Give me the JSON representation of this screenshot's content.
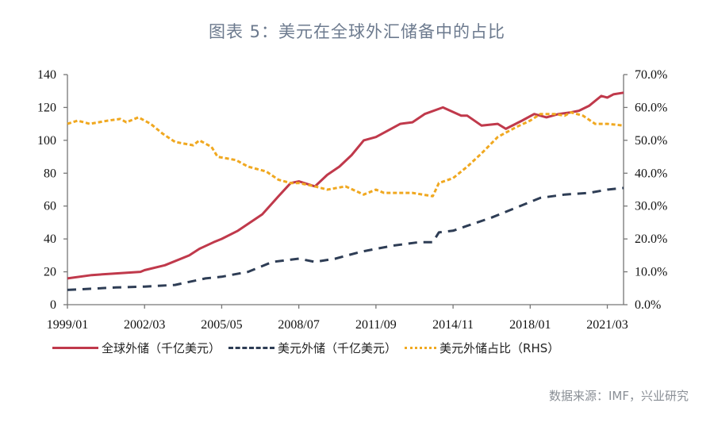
{
  "title": "图表 5：美元在全球外汇储备中的占比",
  "source": "数据来源：IMF，兴业研究",
  "chart_data": {
    "type": "line",
    "title": "图表 5：美元在全球外汇储备中的占比",
    "x_ticks": [
      "1999/01",
      "2002/03",
      "2005/05",
      "2008/07",
      "2011/09",
      "2014/11",
      "2018/01",
      "2021/03"
    ],
    "xlim": [
      "1999/01",
      "2021/11"
    ],
    "y_left": {
      "lim": [
        0,
        140
      ],
      "ticks": [
        "0",
        "20",
        "40",
        "60",
        "80",
        "100",
        "120",
        "140"
      ]
    },
    "y_right": {
      "lim": [
        0,
        70
      ],
      "ticks": [
        "0.0%",
        "10.0%",
        "20.0%",
        "30.0%",
        "40.0%",
        "50.0%",
        "60.0%",
        "70.0%"
      ]
    },
    "grid": false,
    "legend_position": "bottom",
    "series": [
      {
        "name": "全球外储（千亿美元）",
        "axis": "left",
        "color": "#c0394b",
        "style": "solid",
        "points": [
          [
            "1999/01",
            16
          ],
          [
            "2000/01",
            18
          ],
          [
            "2001/01",
            19
          ],
          [
            "2002/01",
            20
          ],
          [
            "2002/03",
            21
          ],
          [
            "2003/01",
            24
          ],
          [
            "2004/01",
            30
          ],
          [
            "2004/06",
            34
          ],
          [
            "2005/01",
            38
          ],
          [
            "2005/05",
            40
          ],
          [
            "2006/01",
            45
          ],
          [
            "2007/01",
            55
          ],
          [
            "2007/09",
            66
          ],
          [
            "2008/03",
            74
          ],
          [
            "2008/07",
            75
          ],
          [
            "2009/03",
            72
          ],
          [
            "2009/09",
            79
          ],
          [
            "2010/03",
            84
          ],
          [
            "2010/09",
            91
          ],
          [
            "2011/03",
            100
          ],
          [
            "2011/09",
            102
          ],
          [
            "2012/03",
            106
          ],
          [
            "2012/09",
            110
          ],
          [
            "2013/03",
            111
          ],
          [
            "2013/09",
            116
          ],
          [
            "2014/06",
            120
          ],
          [
            "2015/03",
            115
          ],
          [
            "2015/06",
            115
          ],
          [
            "2016/01",
            109
          ],
          [
            "2016/09",
            110
          ],
          [
            "2017/01",
            107
          ],
          [
            "2017/09",
            112
          ],
          [
            "2018/03",
            116
          ],
          [
            "2018/09",
            114
          ],
          [
            "2019/03",
            116
          ],
          [
            "2019/09",
            117
          ],
          [
            "2020/01",
            118
          ],
          [
            "2020/06",
            121
          ],
          [
            "2020/12",
            127
          ],
          [
            "2021/03",
            126
          ],
          [
            "2021/06",
            128
          ],
          [
            "2021/11",
            129
          ]
        ]
      },
      {
        "name": "美元外储（千亿美元）",
        "axis": "left",
        "color": "#2e3d55",
        "style": "dashed",
        "points": [
          [
            "1999/01",
            9
          ],
          [
            "2001/01",
            10.5
          ],
          [
            "2002/03",
            11
          ],
          [
            "2003/06",
            12
          ],
          [
            "2004/09",
            16
          ],
          [
            "2005/05",
            17
          ],
          [
            "2006/06",
            20
          ],
          [
            "2007/06",
            26
          ],
          [
            "2008/07",
            28
          ],
          [
            "2009/03",
            26
          ],
          [
            "2010/01",
            28
          ],
          [
            "2011/01",
            32
          ],
          [
            "2011/09",
            34
          ],
          [
            "2012/06",
            36
          ],
          [
            "2013/06",
            38
          ],
          [
            "2014/01",
            38
          ],
          [
            "2014/04",
            44
          ],
          [
            "2014/11",
            45
          ],
          [
            "2015/06",
            48
          ],
          [
            "2016/06",
            53
          ],
          [
            "2017/06",
            59
          ],
          [
            "2018/06",
            65
          ],
          [
            "2019/06",
            67
          ],
          [
            "2020/06",
            68
          ],
          [
            "2021/03",
            70
          ],
          [
            "2021/11",
            71
          ]
        ]
      },
      {
        "name": "美元外储占比（RHS）",
        "axis": "right",
        "color": "#f0a820",
        "style": "dotted",
        "points": [
          [
            "1999/01",
            55
          ],
          [
            "1999/06",
            56
          ],
          [
            "1999/12",
            55
          ],
          [
            "2000/09",
            56
          ],
          [
            "2001/03",
            56.5
          ],
          [
            "2001/06",
            55.5
          ],
          [
            "2001/12",
            57
          ],
          [
            "2002/06",
            55
          ],
          [
            "2002/12",
            52
          ],
          [
            "2003/06",
            49.5
          ],
          [
            "2004/03",
            48.5
          ],
          [
            "2004/06",
            50
          ],
          [
            "2004/12",
            48
          ],
          [
            "2005/03",
            45
          ],
          [
            "2005/12",
            44
          ],
          [
            "2006/06",
            42
          ],
          [
            "2007/03",
            40.5
          ],
          [
            "2007/09",
            38
          ],
          [
            "2008/03",
            37
          ],
          [
            "2008/07",
            37
          ],
          [
            "2009/03",
            36
          ],
          [
            "2009/09",
            35
          ],
          [
            "2010/06",
            36
          ],
          [
            "2011/03",
            33.5
          ],
          [
            "2011/09",
            35
          ],
          [
            "2012/01",
            34
          ],
          [
            "2012/09",
            34
          ],
          [
            "2013/03",
            34
          ],
          [
            "2014/01",
            33
          ],
          [
            "2014/04",
            37
          ],
          [
            "2014/11",
            38.5
          ],
          [
            "2015/06",
            42
          ],
          [
            "2016/01",
            46
          ],
          [
            "2016/09",
            51
          ],
          [
            "2017/06",
            54
          ],
          [
            "2018/01",
            56
          ],
          [
            "2018/06",
            58
          ],
          [
            "2019/01",
            58
          ],
          [
            "2019/06",
            57.5
          ],
          [
            "2019/09",
            58.5
          ],
          [
            "2020/03",
            57.5
          ],
          [
            "2020/09",
            55
          ],
          [
            "2021/03",
            55
          ],
          [
            "2021/11",
            54.5
          ]
        ]
      }
    ]
  }
}
